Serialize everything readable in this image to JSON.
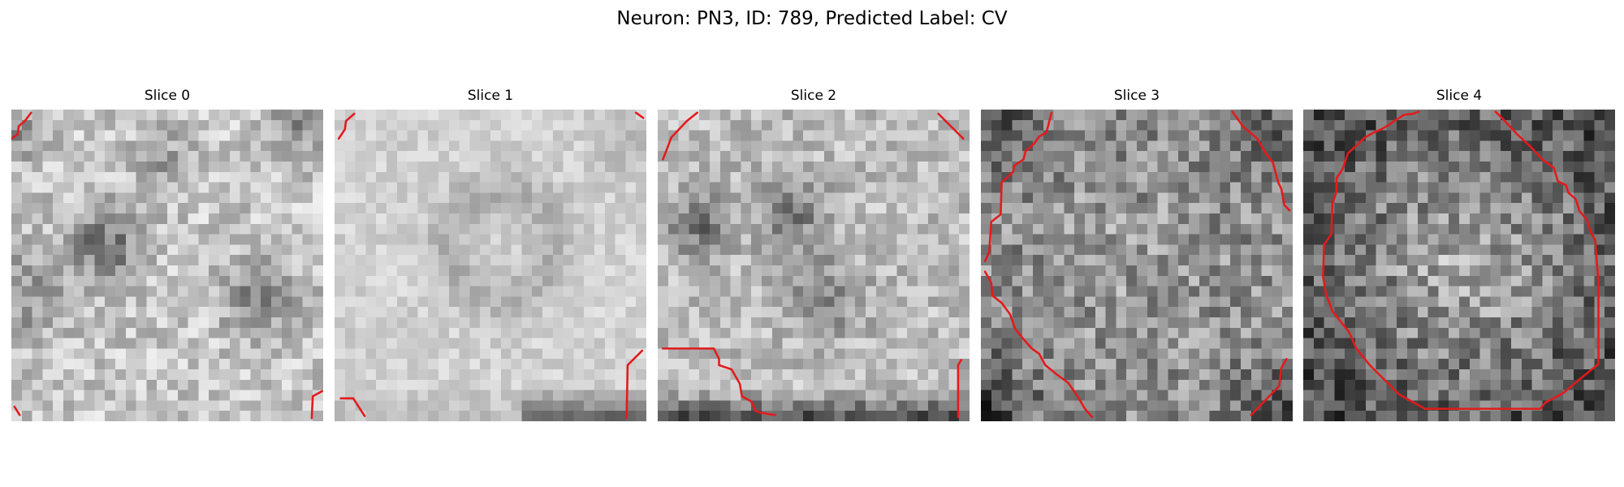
{
  "figure": {
    "title": "Neuron: PN3, ID: 789, Predicted Label: CV"
  },
  "colors": {
    "contour": "#e41a1c",
    "cmap": "grayscale"
  },
  "grid_size": 30,
  "slices": [
    {
      "title": "Slice 0",
      "pattern": "bright-mottled, dark blobs left-center and lower-right, dark left edge",
      "contours": [
        [
          [
            0.0,
            2.8
          ],
          [
            0.6,
            2.4
          ],
          [
            0.7,
            1.6
          ],
          [
            1.3,
            1.1
          ],
          [
            1.9,
            0.3
          ]
        ],
        [
          [
            29.9,
            27.1
          ],
          [
            29.0,
            27.6
          ],
          [
            28.9,
            29.7
          ]
        ],
        [
          [
            0.3,
            28.6
          ],
          [
            0.8,
            29.4
          ]
        ]
      ]
    },
    {
      "title": "Slice 1",
      "pattern": "light gray, faint ring in center, dark strip at bottom-right",
      "contours": [
        [
          [
            0.4,
            2.8
          ],
          [
            1.0,
            1.9
          ],
          [
            1.1,
            1.1
          ],
          [
            1.9,
            0.4
          ]
        ],
        [
          [
            29.0,
            0.3
          ],
          [
            29.7,
            0.8
          ]
        ],
        [
          [
            29.6,
            23.2
          ],
          [
            28.2,
            24.6
          ],
          [
            28.1,
            29.7
          ]
        ],
        [
          [
            0.6,
            27.8
          ],
          [
            1.8,
            27.8
          ],
          [
            2.9,
            29.5
          ]
        ]
      ]
    },
    {
      "title": "Slice 2",
      "pattern": "mixed gray with dark smudges upper-left, dark strip bottom",
      "contours": [
        [
          [
            0.5,
            4.8
          ],
          [
            1.0,
            3.5
          ],
          [
            1.3,
            2.7
          ],
          [
            2.8,
            1.1
          ],
          [
            3.8,
            0.3
          ]
        ],
        [
          [
            27.0,
            0.4
          ],
          [
            29.4,
            2.8
          ]
        ],
        [
          [
            0.5,
            23.0
          ],
          [
            5.4,
            23.0
          ],
          [
            5.9,
            24.0
          ],
          [
            5.9,
            24.6
          ],
          [
            7.1,
            25.0
          ],
          [
            7.9,
            26.4
          ],
          [
            8.1,
            27.6
          ],
          [
            9.0,
            28.1
          ],
          [
            9.4,
            29.0
          ],
          [
            10.0,
            29.2
          ],
          [
            11.3,
            29.4
          ]
        ],
        [
          [
            29.2,
            24.1
          ],
          [
            28.9,
            24.6
          ],
          [
            28.9,
            29.6
          ]
        ]
      ]
    },
    {
      "title": "Slice 3",
      "pattern": "darker textured gray with black corners, arcs of a large circle",
      "contours": [
        [
          [
            0.4,
            14.6
          ],
          [
            0.8,
            13.7
          ],
          [
            1.0,
            10.8
          ],
          [
            1.9,
            10.1
          ],
          [
            2.0,
            7.0
          ],
          [
            3.1,
            6.0
          ],
          [
            3.2,
            5.4
          ],
          [
            4.1,
            4.8
          ],
          [
            4.3,
            4.0
          ],
          [
            5.1,
            3.3
          ],
          [
            5.6,
            2.6
          ],
          [
            6.3,
            2.2
          ],
          [
            6.8,
            0.3
          ]
        ],
        [
          [
            24.2,
            0.2
          ],
          [
            25.2,
            1.6
          ],
          [
            26.6,
            2.8
          ],
          [
            27.4,
            4.2
          ],
          [
            28.1,
            5.1
          ],
          [
            28.6,
            7.0
          ],
          [
            28.9,
            7.6
          ],
          [
            29.2,
            9.2
          ],
          [
            29.7,
            9.7
          ]
        ],
        [
          [
            0.4,
            15.6
          ],
          [
            1.0,
            16.7
          ],
          [
            1.1,
            17.9
          ],
          [
            2.0,
            18.6
          ],
          [
            2.8,
            19.7
          ],
          [
            3.3,
            21.1
          ],
          [
            4.1,
            22.1
          ],
          [
            4.9,
            23.0
          ],
          [
            5.6,
            23.5
          ],
          [
            6.2,
            24.6
          ],
          [
            7.3,
            25.5
          ],
          [
            8.4,
            26.3
          ],
          [
            9.1,
            27.3
          ],
          [
            9.6,
            28.1
          ],
          [
            10.0,
            28.8
          ],
          [
            10.7,
            29.6
          ]
        ],
        [
          [
            29.4,
            24.0
          ],
          [
            28.9,
            24.9
          ],
          [
            28.7,
            26.6
          ],
          [
            26.0,
            29.4
          ]
        ]
      ]
    },
    {
      "title": "Slice 4",
      "pattern": "dark noisy texture, dark edges, large closed ring outline",
      "contours": [
        [
          [
            18.5,
            0.2
          ],
          [
            19.3,
            1.0
          ],
          [
            20.6,
            2.4
          ],
          [
            21.8,
            3.5
          ],
          [
            23.0,
            4.8
          ],
          [
            24.1,
            5.6
          ],
          [
            24.5,
            6.9
          ],
          [
            25.3,
            7.3
          ],
          [
            25.5,
            8.0
          ],
          [
            26.2,
            8.6
          ],
          [
            26.6,
            9.8
          ],
          [
            27.3,
            10.6
          ],
          [
            27.6,
            11.7
          ],
          [
            28.1,
            12.6
          ],
          [
            28.2,
            14.1
          ],
          [
            28.4,
            16.5
          ],
          [
            28.4,
            19.6
          ],
          [
            28.4,
            24.5
          ],
          [
            26.9,
            25.7
          ],
          [
            25.0,
            27.3
          ],
          [
            23.3,
            28.2
          ],
          [
            22.8,
            28.8
          ],
          [
            11.7,
            28.8
          ],
          [
            9.2,
            27.4
          ],
          [
            8.0,
            26.2
          ],
          [
            6.4,
            24.6
          ],
          [
            5.1,
            23.0
          ],
          [
            4.4,
            21.4
          ],
          [
            3.6,
            20.4
          ],
          [
            2.8,
            19.4
          ],
          [
            2.2,
            17.8
          ],
          [
            1.9,
            16.1
          ],
          [
            2.0,
            13.0
          ],
          [
            2.7,
            12.0
          ],
          [
            2.8,
            9.1
          ],
          [
            3.2,
            7.9
          ],
          [
            3.2,
            6.6
          ],
          [
            3.8,
            5.7
          ],
          [
            4.3,
            4.2
          ],
          [
            5.2,
            3.4
          ],
          [
            5.9,
            2.7
          ],
          [
            6.8,
            2.2
          ],
          [
            7.5,
            1.9
          ],
          [
            8.2,
            1.5
          ],
          [
            8.9,
            1.0
          ],
          [
            9.7,
            0.5
          ],
          [
            10.6,
            0.4
          ],
          [
            11.1,
            0.2
          ]
        ]
      ]
    }
  ]
}
